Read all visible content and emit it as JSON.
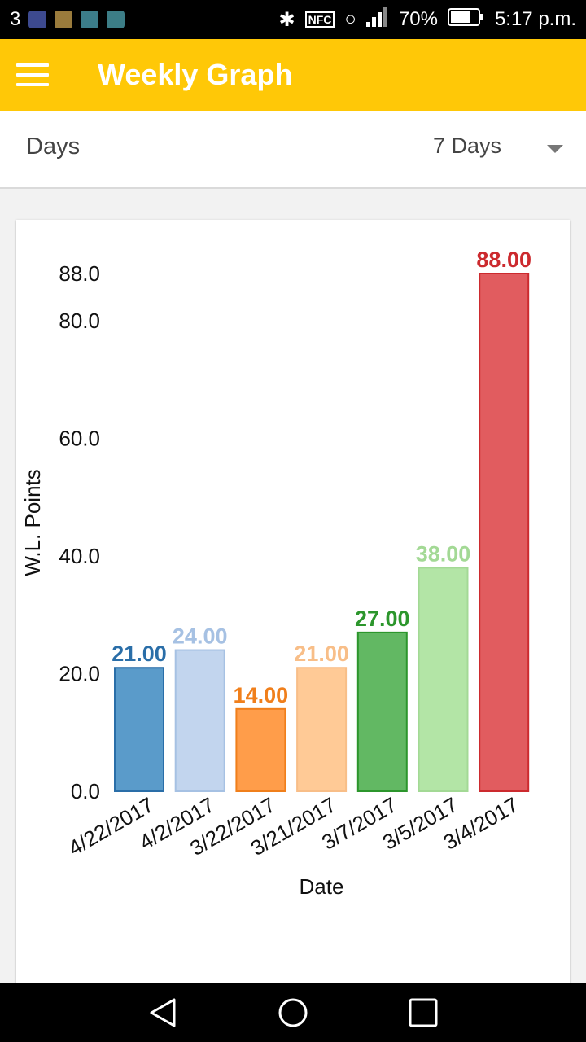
{
  "status_bar": {
    "notif_count": "3",
    "battery": "70%",
    "time": "5:17 p.m.",
    "nfc": "NFC"
  },
  "app_bar": {
    "title": "Weekly Graph"
  },
  "filter": {
    "label": "Days",
    "selected": "7 Days"
  },
  "chart_data": {
    "type": "bar",
    "categories": [
      "4/22/2017",
      "4/2/2017",
      "3/22/2017",
      "3/21/2017",
      "3/7/2017",
      "3/5/2017",
      "3/4/2017"
    ],
    "values": [
      21,
      24,
      14,
      21,
      27,
      38,
      88
    ],
    "value_labels": [
      "21.00",
      "24.00",
      "14.00",
      "21.00",
      "27.00",
      "38.00",
      "88.00"
    ],
    "bar_colors": [
      "#5a9bca",
      "#c2d5ee",
      "#ff9d4a",
      "#ffca96",
      "#62b863",
      "#b3e5a6",
      "#e15c5f"
    ],
    "label_colors": [
      "#2a6ea8",
      "#a6c1e3",
      "#f07f1b",
      "#f8be88",
      "#2c962c",
      "#a3d995",
      "#cc2a2e"
    ],
    "ylabel": "W.L. Points",
    "xlabel": "Date",
    "yticks": [
      0,
      20,
      40,
      60,
      80,
      88
    ],
    "ytick_labels": [
      "0.0",
      "20.0",
      "40.0",
      "60.0",
      "80.0",
      "88.0"
    ],
    "ylim": [
      0,
      88
    ],
    "grid": false,
    "legend": "none"
  }
}
